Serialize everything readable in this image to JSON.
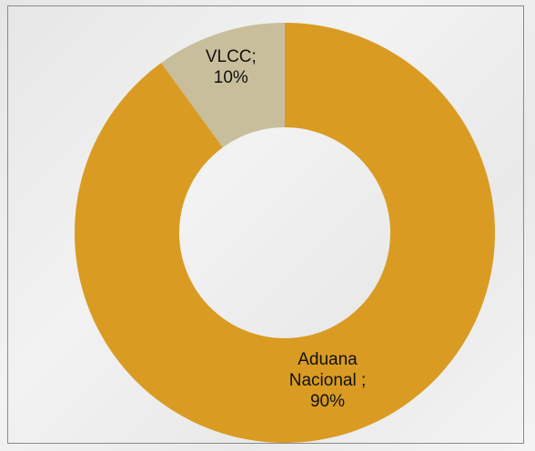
{
  "chart_data": {
    "type": "donut",
    "categories": [
      "Aduana Nacional",
      "VLCC"
    ],
    "values": [
      90,
      10
    ],
    "value_labels": [
      "; 90%",
      "; 10%"
    ],
    "colors": [
      "#d99b22",
      "#c9be9b"
    ]
  }
}
